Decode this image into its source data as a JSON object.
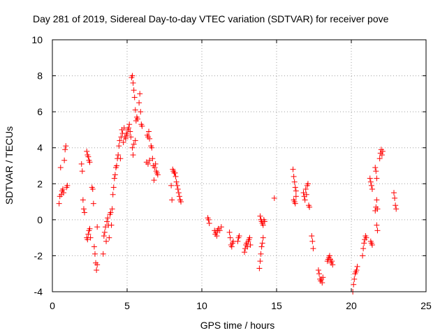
{
  "chart_data": {
    "type": "scatter",
    "title": "Day 281 of 2019, Sidereal Day-to-day VTEC variation (SDTVAR) for receiver pove",
    "xlabel": "GPS time / hours",
    "ylabel": "SDTVAR / TECUs",
    "xlim": [
      0,
      25
    ],
    "ylim": [
      -4,
      10
    ],
    "x_ticks": [
      0,
      5,
      10,
      15,
      20,
      25
    ],
    "y_ticks": [
      -4,
      -2,
      0,
      2,
      4,
      6,
      8,
      10
    ],
    "x_tick_labels": [
      "0",
      "5",
      "10",
      "15",
      "20",
      "25"
    ],
    "y_tick_labels": [
      "-4",
      "-2",
      "0",
      "2",
      "4",
      "6",
      "8",
      "10"
    ],
    "grid": true,
    "marker": "+",
    "series": [
      {
        "name": "SDTVAR",
        "color": "#ff0000",
        "points": [
          [
            0.45,
            0.9
          ],
          [
            0.5,
            1.3
          ],
          [
            0.55,
            2.9
          ],
          [
            0.6,
            1.4
          ],
          [
            0.65,
            1.6
          ],
          [
            0.7,
            1.7
          ],
          [
            0.75,
            1.5
          ],
          [
            0.8,
            3.3
          ],
          [
            0.85,
            3.9
          ],
          [
            0.9,
            4.1
          ],
          [
            0.95,
            1.8
          ],
          [
            1.0,
            1.9
          ],
          [
            1.95,
            3.1
          ],
          [
            2.0,
            2.7
          ],
          [
            2.05,
            1.1
          ],
          [
            2.1,
            0.6
          ],
          [
            2.15,
            0.4
          ],
          [
            2.3,
            3.8
          ],
          [
            2.35,
            3.6
          ],
          [
            2.4,
            3.5
          ],
          [
            2.45,
            3.3
          ],
          [
            2.5,
            3.2
          ],
          [
            2.3,
            -1.0
          ],
          [
            2.35,
            -1.1
          ],
          [
            2.4,
            -0.8
          ],
          [
            2.45,
            -0.6
          ],
          [
            2.5,
            -0.5
          ],
          [
            2.55,
            -1.0
          ],
          [
            2.65,
            1.8
          ],
          [
            2.7,
            1.7
          ],
          [
            2.75,
            0.9
          ],
          [
            2.8,
            -1.5
          ],
          [
            2.85,
            -1.9
          ],
          [
            2.9,
            -2.4
          ],
          [
            2.95,
            -2.8
          ],
          [
            3.0,
            -2.5
          ],
          [
            3.0,
            -0.4
          ],
          [
            3.4,
            -1.9
          ],
          [
            3.45,
            -0.9
          ],
          [
            3.5,
            -0.7
          ],
          [
            3.55,
            -0.4
          ],
          [
            3.6,
            -1.2
          ],
          [
            3.65,
            -0.1
          ],
          [
            3.7,
            0.1
          ],
          [
            3.75,
            -0.3
          ],
          [
            3.8,
            -1.0
          ],
          [
            3.85,
            0.3
          ],
          [
            3.9,
            0.4
          ],
          [
            3.95,
            -0.3
          ],
          [
            4.0,
            0.6
          ],
          [
            4.05,
            1.4
          ],
          [
            4.1,
            1.8
          ],
          [
            4.15,
            2.3
          ],
          [
            4.2,
            2.5
          ],
          [
            4.25,
            2.9
          ],
          [
            4.3,
            3.0
          ],
          [
            4.35,
            3.4
          ],
          [
            4.4,
            3.6
          ],
          [
            4.45,
            4.1
          ],
          [
            4.5,
            4.4
          ],
          [
            4.55,
            3.4
          ],
          [
            4.6,
            4.6
          ],
          [
            4.65,
            5.0
          ],
          [
            4.7,
            4.8
          ],
          [
            4.75,
            4.3
          ],
          [
            4.8,
            5.1
          ],
          [
            4.85,
            4.6
          ],
          [
            4.9,
            4.5
          ],
          [
            4.95,
            4.8
          ],
          [
            5.0,
            4.7
          ],
          [
            5.05,
            5.0
          ],
          [
            5.1,
            5.1
          ],
          [
            5.15,
            5.3
          ],
          [
            5.2,
            4.9
          ],
          [
            5.25,
            4.6
          ],
          [
            5.3,
            7.9
          ],
          [
            5.35,
            8.0
          ],
          [
            5.4,
            7.6
          ],
          [
            5.45,
            7.2
          ],
          [
            5.5,
            6.8
          ],
          [
            5.55,
            6.1
          ],
          [
            5.6,
            5.5
          ],
          [
            5.65,
            5.7
          ],
          [
            5.7,
            5.6
          ],
          [
            5.35,
            4.0
          ],
          [
            5.4,
            3.6
          ],
          [
            5.45,
            4.2
          ],
          [
            5.55,
            4.4
          ],
          [
            5.8,
            6.5
          ],
          [
            5.85,
            7.0
          ],
          [
            5.9,
            6.0
          ],
          [
            5.95,
            5.3
          ],
          [
            6.0,
            5.2
          ],
          [
            6.35,
            4.7
          ],
          [
            6.4,
            4.6
          ],
          [
            6.45,
            4.9
          ],
          [
            6.5,
            4.5
          ],
          [
            6.3,
            3.2
          ],
          [
            6.4,
            3.1
          ],
          [
            6.5,
            3.3
          ],
          [
            6.6,
            4.1
          ],
          [
            6.65,
            4.0
          ],
          [
            6.7,
            3.4
          ],
          [
            6.75,
            3.0
          ],
          [
            6.8,
            2.2
          ],
          [
            6.85,
            2.9
          ],
          [
            6.9,
            3.1
          ],
          [
            6.95,
            2.7
          ],
          [
            7.0,
            2.6
          ],
          [
            7.05,
            2.5
          ],
          [
            7.95,
            1.9
          ],
          [
            8.0,
            1.1
          ],
          [
            8.05,
            2.8
          ],
          [
            8.1,
            2.7
          ],
          [
            8.15,
            2.6
          ],
          [
            8.2,
            2.6
          ],
          [
            8.25,
            2.4
          ],
          [
            8.3,
            2.1
          ],
          [
            8.35,
            1.9
          ],
          [
            8.4,
            1.7
          ],
          [
            8.45,
            1.5
          ],
          [
            8.5,
            1.3
          ],
          [
            8.55,
            1.1
          ],
          [
            8.6,
            1.0
          ],
          [
            10.4,
            0.1
          ],
          [
            10.45,
            0.0
          ],
          [
            10.5,
            -0.2
          ],
          [
            10.85,
            -0.6
          ],
          [
            10.9,
            -0.8
          ],
          [
            10.95,
            -0.7
          ],
          [
            11.0,
            -0.9
          ],
          [
            11.05,
            -0.6
          ],
          [
            11.1,
            -0.5
          ],
          [
            11.2,
            -0.6
          ],
          [
            11.3,
            -0.4
          ],
          [
            11.85,
            -0.7
          ],
          [
            11.9,
            -1.0
          ],
          [
            11.95,
            -1.4
          ],
          [
            12.0,
            -1.5
          ],
          [
            12.05,
            -1.3
          ],
          [
            12.1,
            -1.2
          ],
          [
            12.4,
            -1.2
          ],
          [
            12.45,
            -1.0
          ],
          [
            12.5,
            -0.9
          ],
          [
            12.85,
            -1.8
          ],
          [
            12.9,
            -1.6
          ],
          [
            12.95,
            -1.4
          ],
          [
            13.0,
            -1.3
          ],
          [
            13.05,
            -1.5
          ],
          [
            13.1,
            -1.2
          ],
          [
            13.15,
            -1.1
          ],
          [
            13.2,
            -1.0
          ],
          [
            13.25,
            -1.4
          ],
          [
            13.85,
            -2.7
          ],
          [
            13.9,
            -2.3
          ],
          [
            13.95,
            -1.9
          ],
          [
            14.0,
            -1.5
          ],
          [
            14.05,
            -1.3
          ],
          [
            14.1,
            -1.0
          ],
          [
            13.9,
            0.2
          ],
          [
            13.95,
            0.0
          ],
          [
            14.0,
            -0.1
          ],
          [
            14.05,
            -0.2
          ],
          [
            14.1,
            -0.3
          ],
          [
            14.15,
            0.0
          ],
          [
            14.2,
            -0.1
          ],
          [
            14.85,
            1.2
          ],
          [
            16.1,
            2.8
          ],
          [
            16.15,
            2.4
          ],
          [
            16.2,
            2.1
          ],
          [
            16.25,
            1.8
          ],
          [
            16.3,
            1.6
          ],
          [
            16.15,
            1.1
          ],
          [
            16.2,
            1.0
          ],
          [
            16.25,
            0.9
          ],
          [
            16.3,
            1.3
          ],
          [
            16.8,
            1.5
          ],
          [
            16.85,
            1.3
          ],
          [
            16.9,
            1.1
          ],
          [
            16.95,
            1.7
          ],
          [
            17.0,
            1.4
          ],
          [
            17.05,
            1.9
          ],
          [
            17.1,
            2.0
          ],
          [
            17.15,
            0.8
          ],
          [
            17.2,
            0.7
          ],
          [
            17.35,
            -0.9
          ],
          [
            17.4,
            -1.2
          ],
          [
            17.45,
            -1.6
          ],
          [
            17.8,
            -2.8
          ],
          [
            17.85,
            -3.0
          ],
          [
            17.9,
            -3.3
          ],
          [
            17.95,
            -3.4
          ],
          [
            18.0,
            -3.3
          ],
          [
            18.05,
            -3.5
          ],
          [
            18.1,
            -3.2
          ],
          [
            18.4,
            -2.3
          ],
          [
            18.45,
            -2.2
          ],
          [
            18.5,
            -2.1
          ],
          [
            18.55,
            -2.0
          ],
          [
            18.6,
            -2.2
          ],
          [
            18.65,
            -2.4
          ],
          [
            18.7,
            -2.3
          ],
          [
            18.75,
            -2.5
          ],
          [
            20.1,
            -4.0
          ],
          [
            20.15,
            -3.6
          ],
          [
            20.2,
            -3.3
          ],
          [
            20.25,
            -3.0
          ],
          [
            20.3,
            -2.9
          ],
          [
            20.35,
            -2.8
          ],
          [
            20.4,
            -2.6
          ],
          [
            20.75,
            -2.0
          ],
          [
            20.8,
            -1.6
          ],
          [
            20.85,
            -1.3
          ],
          [
            20.9,
            -1.1
          ],
          [
            20.95,
            -0.9
          ],
          [
            21.0,
            -1.0
          ],
          [
            21.3,
            -1.2
          ],
          [
            21.35,
            -1.3
          ],
          [
            21.4,
            -1.4
          ],
          [
            21.25,
            2.3
          ],
          [
            21.3,
            2.1
          ],
          [
            21.35,
            1.9
          ],
          [
            21.4,
            1.7
          ],
          [
            21.6,
            2.9
          ],
          [
            21.65,
            2.7
          ],
          [
            21.7,
            2.3
          ],
          [
            21.6,
            0.5
          ],
          [
            21.65,
            0.7
          ],
          [
            21.7,
            1.1
          ],
          [
            21.75,
            0.6
          ],
          [
            21.9,
            3.4
          ],
          [
            21.95,
            3.7
          ],
          [
            22.0,
            3.9
          ],
          [
            22.05,
            3.6
          ],
          [
            22.1,
            3.8
          ],
          [
            21.75,
            -0.6
          ],
          [
            21.7,
            -0.3
          ],
          [
            22.85,
            1.5
          ],
          [
            22.9,
            1.2
          ],
          [
            22.95,
            0.8
          ],
          [
            23.0,
            0.6
          ]
        ]
      }
    ]
  }
}
